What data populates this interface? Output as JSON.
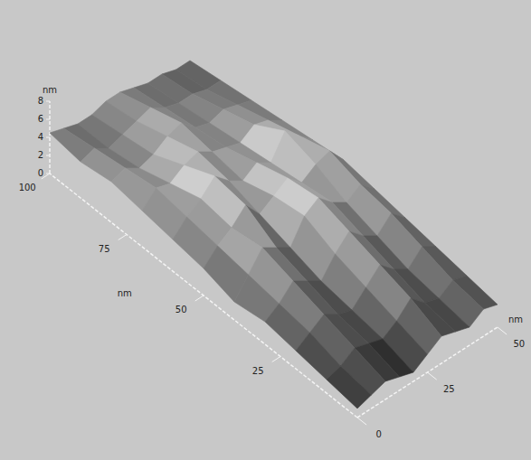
{
  "chart_data": {
    "type": "surface",
    "x_label": "nm",
    "y_label": "nm",
    "z_label": "nm",
    "x": [
      0,
      10,
      20,
      30,
      40,
      50,
      60,
      70,
      80,
      90,
      100
    ],
    "y": [
      0,
      5,
      10,
      15,
      20,
      25,
      30,
      35,
      40,
      45,
      50
    ],
    "z": [
      [
        1,
        1.5,
        2,
        1.5,
        1,
        2,
        3,
        2.5,
        2,
        3,
        2.5
      ],
      [
        1.5,
        2,
        3,
        2.5,
        2,
        3,
        4.5,
        3,
        2.5,
        3.5,
        3
      ],
      [
        2,
        3,
        4,
        3,
        2.5,
        4,
        5.5,
        4,
        3,
        4.5,
        3.5
      ],
      [
        2.5,
        3.5,
        5,
        4,
        3,
        5,
        6.5,
        5,
        4,
        5.5,
        4
      ],
      [
        2,
        4,
        6,
        5,
        4,
        6.5,
        7.5,
        6,
        5,
        6,
        4.5
      ],
      [
        3,
        4.5,
        5.5,
        7,
        5,
        6,
        7,
        5.5,
        6.5,
        7,
        5
      ],
      [
        3.5,
        5,
        6,
        7.5,
        6,
        5,
        6,
        5,
        7.5,
        6,
        4.5
      ],
      [
        4,
        5.5,
        5,
        6,
        6.5,
        5.5,
        5,
        4.5,
        5.5,
        5,
        4
      ],
      [
        4.5,
        5,
        4,
        4.5,
        5.5,
        6,
        4.5,
        4,
        4.5,
        4,
        3.5
      ],
      [
        4,
        4.5,
        3.5,
        4,
        4.5,
        5,
        4,
        3.5,
        3.5,
        3,
        3
      ],
      [
        4.5,
        4,
        3.5,
        3.5,
        4,
        4,
        3.5,
        3,
        3,
        2.5,
        2.5
      ]
    ],
    "xlim": [
      0,
      100
    ],
    "xticks": [
      25,
      50,
      75,
      100
    ],
    "ylim": [
      0,
      50
    ],
    "yticks": [
      0,
      25,
      50
    ],
    "zlim": [
      0,
      8
    ],
    "zticks": [
      0,
      2,
      4,
      6,
      8
    ],
    "grid": false
  }
}
